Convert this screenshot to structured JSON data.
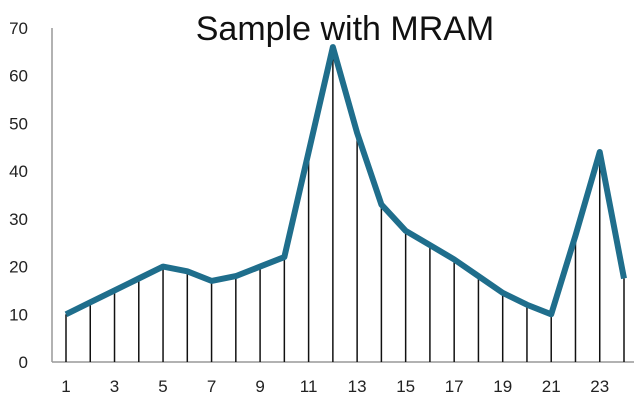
{
  "chart_data": {
    "type": "line",
    "title": "Sample with MRAM",
    "xlabel": "",
    "ylabel": "",
    "x": [
      1,
      2,
      3,
      4,
      5,
      6,
      7,
      8,
      9,
      10,
      11,
      12,
      13,
      14,
      15,
      16,
      17,
      18,
      19,
      20,
      21,
      22,
      23,
      24
    ],
    "values": [
      10,
      12.5,
      15,
      17.5,
      20,
      19,
      17,
      18,
      20,
      22,
      44,
      66,
      48,
      33,
      27.5,
      24.5,
      21.5,
      18,
      14.5,
      12,
      10,
      26.5,
      44,
      17.5
    ],
    "x_tick_labels": [
      "1",
      "3",
      "5",
      "7",
      "9",
      "11",
      "13",
      "15",
      "17",
      "19",
      "21",
      "23"
    ],
    "y_tick_labels": [
      "0",
      "10",
      "20",
      "30",
      "40",
      "50",
      "60",
      "70"
    ],
    "ylim": [
      0,
      70
    ],
    "xlim": [
      1,
      24
    ],
    "grid": false,
    "drop_lines": true,
    "colors": {
      "line": "#1f6e8c",
      "drop_lines": "#111111",
      "axis": "#999999"
    }
  }
}
